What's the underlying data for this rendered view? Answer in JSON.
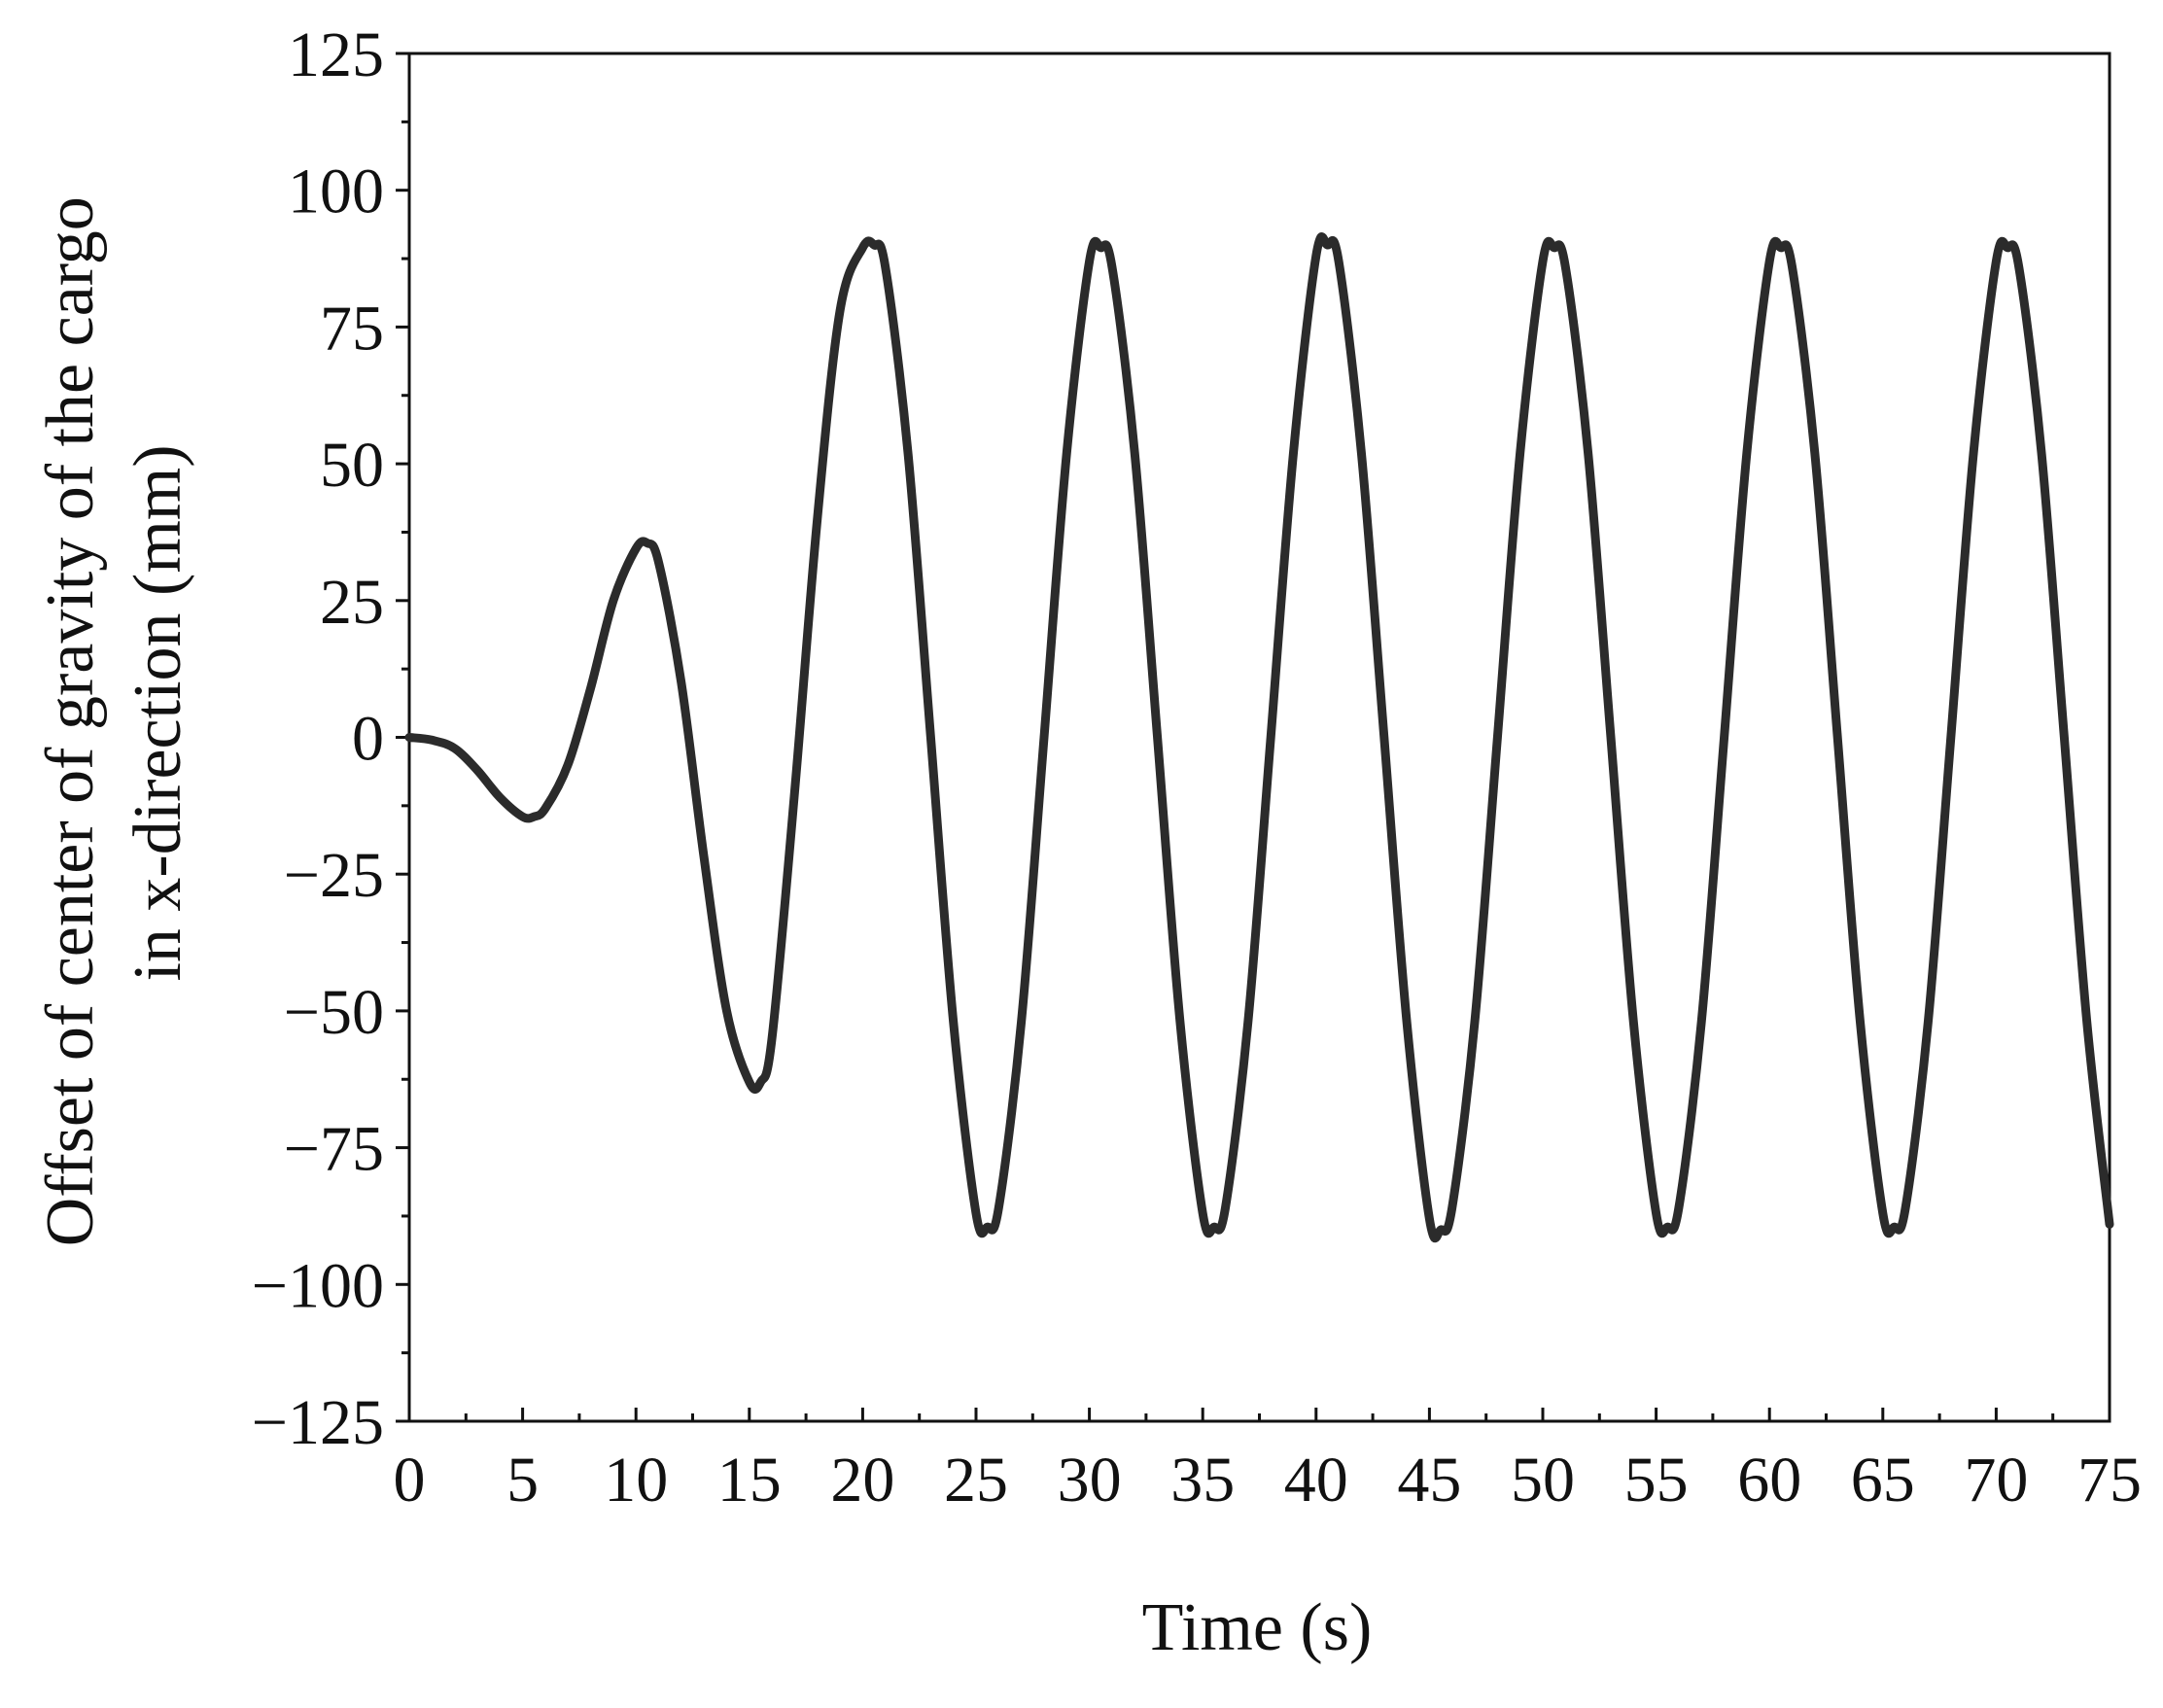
{
  "chart_data": {
    "type": "line",
    "title": "",
    "xlabel": "Time (s)",
    "ylabel_lines": [
      "Offset of center of gravity of the cargo",
      "in x-direction (mm)"
    ],
    "xlim": [
      0,
      75
    ],
    "ylim": [
      -125,
      125
    ],
    "x_ticks": [
      0,
      5,
      10,
      15,
      20,
      25,
      30,
      35,
      40,
      45,
      50,
      55,
      60,
      65,
      70,
      75
    ],
    "x_tick_labels": [
      "0",
      "5",
      "10",
      "15",
      "20",
      "25",
      "30",
      "35",
      "40",
      "45",
      "50",
      "55",
      "60",
      "65",
      "70",
      "75"
    ],
    "y_ticks": [
      -125,
      -100,
      -75,
      -50,
      -25,
      0,
      25,
      50,
      75,
      100,
      125
    ],
    "y_tick_labels": [
      "−125",
      "−100",
      "−75",
      "−50",
      "−25",
      "0",
      "25",
      "50",
      "75",
      "100",
      "125"
    ],
    "grid": false,
    "legend": "none",
    "line_color": "#2b2b2b",
    "series": [
      {
        "x": [
          0,
          1,
          2,
          3,
          4,
          5,
          5.5,
          6,
          7,
          8,
          9,
          10,
          10.5,
          11,
          12,
          13,
          14,
          15,
          15.5,
          16,
          17,
          18,
          19,
          20,
          20.5,
          21,
          22,
          23,
          24,
          25,
          25.5,
          26,
          27,
          28,
          29,
          30,
          30.5,
          31,
          32,
          33,
          34,
          35,
          35.5,
          36,
          37,
          38,
          39,
          40,
          40.5,
          41,
          42,
          43,
          44,
          45,
          45.5,
          46,
          47,
          48,
          49,
          50,
          50.5,
          51,
          52,
          53,
          54,
          55,
          55.5,
          56,
          57,
          58,
          59,
          60,
          60.5,
          61,
          62,
          63,
          64,
          65,
          65.5,
          66,
          67,
          68,
          69,
          70,
          70.5,
          71,
          72,
          73,
          74,
          75
        ],
        "y": [
          0,
          -0.5,
          -2,
          -6,
          -11,
          -14.5,
          -14.5,
          -13,
          -5,
          9,
          25,
          34.5,
          35.5,
          32,
          10,
          -22,
          -50,
          -63,
          -63,
          -55,
          -10,
          40,
          78,
          89.5,
          90,
          86,
          52,
          0,
          -52,
          -87,
          -89.5,
          -86,
          -52,
          0,
          52,
          87,
          89.5,
          86,
          52,
          0,
          -52,
          -87,
          -89.5,
          -86,
          -52,
          0,
          52,
          88,
          90,
          87,
          52,
          0,
          -52,
          -88,
          -90,
          -86,
          -52,
          0,
          52,
          87,
          89.5,
          86,
          52,
          0,
          -52,
          -87,
          -89.5,
          -86,
          -52,
          0,
          52,
          87,
          89.5,
          86,
          52,
          0,
          -52,
          -87,
          -89.5,
          -86,
          -52,
          0,
          52,
          87,
          89.5,
          86,
          52,
          0,
          -52,
          -89
        ]
      }
    ]
  }
}
